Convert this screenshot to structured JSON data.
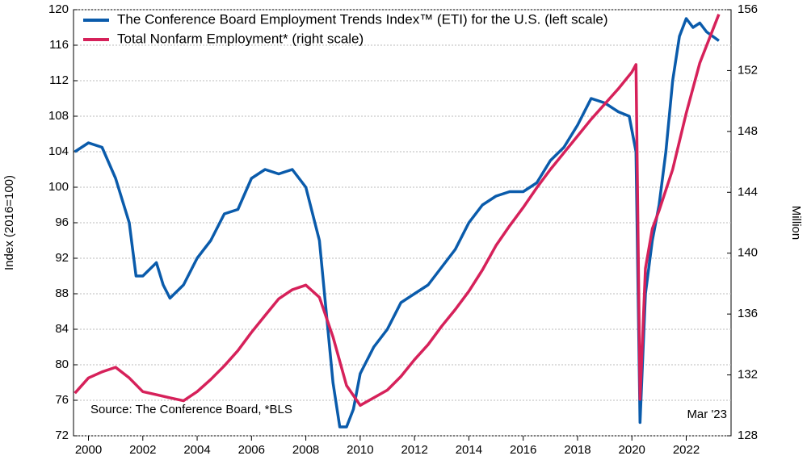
{
  "chart_data": {
    "type": "line",
    "legend_text": null,
    "source": "Source: The Conference Board, *BLS",
    "date_note": "Mar '23",
    "ylabel": "Index (2016=100)",
    "y2label": "Million",
    "xlim": [
      1999.45,
      2023.65
    ],
    "xticks": [
      2000,
      2002,
      2004,
      2006,
      2008,
      2010,
      2012,
      2014,
      2016,
      2018,
      2020,
      2022
    ],
    "ylim": [
      72,
      120
    ],
    "yticks": [
      72,
      76,
      80,
      84,
      88,
      92,
      96,
      100,
      104,
      108,
      112,
      116,
      120
    ],
    "y2lim": [
      128,
      156
    ],
    "y2ticks": [
      128,
      132,
      136,
      140,
      144,
      148,
      152,
      156
    ],
    "grid": true,
    "legend": "upper left",
    "series": [
      {
        "name": "The Conference Board Employment Trends Index™ (ETI) for the U.S. (left scale)",
        "color": "#0a5bab",
        "axis": "y",
        "x": [
          1999.5,
          2000.0,
          2000.5,
          2001.0,
          2001.5,
          2001.75,
          2002.0,
          2002.5,
          2002.75,
          2003.0,
          2003.5,
          2004.0,
          2004.5,
          2005.0,
          2005.5,
          2006.0,
          2006.5,
          2007.0,
          2007.5,
          2008.0,
          2008.5,
          2009.0,
          2009.25,
          2009.5,
          2009.75,
          2010.0,
          2010.5,
          2011.0,
          2011.5,
          2012.0,
          2012.5,
          2013.0,
          2013.5,
          2014.0,
          2014.5,
          2015.0,
          2015.5,
          2016.0,
          2016.5,
          2017.0,
          2017.5,
          2018.0,
          2018.5,
          2019.0,
          2019.5,
          2019.9,
          2020.15,
          2020.3,
          2020.5,
          2020.75,
          2021.0,
          2021.25,
          2021.5,
          2021.75,
          2022.0,
          2022.25,
          2022.5,
          2022.75,
          2023.2
        ],
        "values": [
          104,
          105,
          104.5,
          101,
          96,
          90,
          90,
          91.5,
          89,
          87.5,
          89,
          92,
          94,
          97,
          97.5,
          101,
          102,
          101.5,
          102,
          100,
          94,
          78,
          73,
          73,
          75,
          79,
          82,
          84,
          87,
          88,
          89,
          91,
          93,
          96,
          98,
          99,
          99.5,
          99.5,
          100.5,
          103,
          104.5,
          107,
          110,
          109.5,
          108.5,
          108,
          104,
          73.5,
          88,
          94,
          98,
          104,
          112,
          117,
          119,
          118,
          118.5,
          117.5,
          116.5
        ]
      },
      {
        "name": "Total Nonfarm Employment* (right scale)",
        "color": "#d6215a",
        "axis": "y2",
        "x": [
          1999.5,
          2000.0,
          2000.5,
          2001.0,
          2001.5,
          2002.0,
          2002.5,
          2003.0,
          2003.5,
          2004.0,
          2004.5,
          2005.0,
          2005.5,
          2006.0,
          2006.5,
          2007.0,
          2007.5,
          2008.0,
          2008.5,
          2009.0,
          2009.5,
          2010.0,
          2010.5,
          2011.0,
          2011.5,
          2012.0,
          2012.5,
          2013.0,
          2013.5,
          2014.0,
          2014.5,
          2015.0,
          2015.5,
          2016.0,
          2016.5,
          2017.0,
          2017.5,
          2018.0,
          2018.5,
          2019.0,
          2019.5,
          2020.0,
          2020.15,
          2020.3,
          2020.5,
          2020.75,
          2021.0,
          2021.5,
          2022.0,
          2022.5,
          2023.2
        ],
        "values": [
          130.8,
          131.8,
          132.2,
          132.5,
          131.8,
          130.9,
          130.7,
          130.5,
          130.3,
          130.9,
          131.7,
          132.6,
          133.6,
          134.8,
          135.9,
          137,
          137.6,
          137.9,
          137.1,
          134.5,
          131.3,
          130,
          130.5,
          131,
          131.9,
          133,
          134,
          135.2,
          136.3,
          137.5,
          138.9,
          140.5,
          141.8,
          143,
          144.3,
          145.5,
          146.6,
          147.7,
          148.8,
          149.8,
          150.8,
          151.9,
          152.4,
          130.4,
          139,
          141.6,
          142.8,
          145.5,
          149.2,
          152.5,
          155.7
        ]
      }
    ]
  }
}
